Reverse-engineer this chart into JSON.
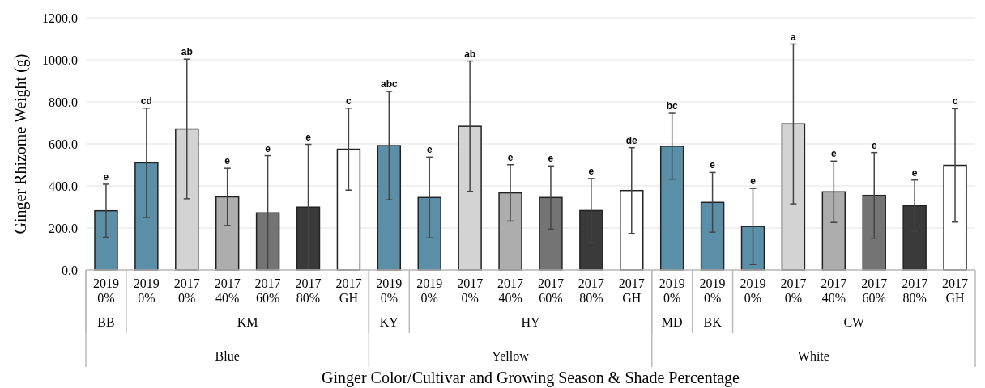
{
  "chart_data": {
    "type": "bar",
    "ylabel": "Ginger Rhizome Weight (g)",
    "xlabel": "Ginger Color/Cultivar and Growing Season & Shade Percentage",
    "categories": [
      "2019 0%",
      "2019 0%",
      "2017 0%",
      "2017 40%",
      "2017 60%",
      "2017 80%",
      "2017 GH",
      "2019 0%",
      "2019 0%",
      "2017 0%",
      "2017 40%",
      "2017 60%",
      "2017 80%",
      "2017 GH",
      "2019 0%",
      "2019 0%",
      "2019 0%",
      "2017 0%",
      "2017 40%",
      "2017 60%",
      "2017 80%",
      "2017 GH"
    ],
    "values": [
      282,
      510,
      671,
      348,
      272,
      299,
      575,
      592,
      345,
      684,
      367,
      345,
      283,
      378,
      589,
      322,
      207,
      695,
      372,
      355,
      306,
      498
    ],
    "errors": [
      126,
      260,
      332,
      136,
      272,
      299,
      195,
      258,
      192,
      310,
      134,
      150,
      152,
      204,
      157,
      142,
      181,
      380,
      146,
      204,
      122,
      270
    ],
    "colors": [
      "#5b8fa8",
      "#5b8fa8",
      "#d3d3d3",
      "#adadad",
      "#747474",
      "#3a3a3a",
      "#ffffff",
      "#5b8fa8",
      "#5b8fa8",
      "#d3d3d3",
      "#adadad",
      "#747474",
      "#3a3a3a",
      "#ffffff",
      "#5b8fa8",
      "#5b8fa8",
      "#5b8fa8",
      "#d3d3d3",
      "#adadad",
      "#747474",
      "#3a3a3a",
      "#ffffff"
    ],
    "annotations": [
      "e",
      "cd",
      "ab",
      "e",
      "e",
      "e",
      "c",
      "abc",
      "e",
      "ab",
      "e",
      "e",
      "e",
      "de",
      "bc",
      "e",
      "e",
      "a",
      "e",
      "e",
      "e",
      "c",
      "BB",
      "KM",
      "KY",
      "HY",
      "MD",
      "BK",
      "CW",
      "Blue",
      "Yellow",
      "White"
    ],
    "ylim": [
      0,
      1200
    ],
    "yticks": [
      {
        "value": 0,
        "label": "0.0"
      },
      {
        "value": 200,
        "label": "200.0"
      },
      {
        "value": 400,
        "label": "400.0"
      },
      {
        "value": 600,
        "label": "600.0"
      },
      {
        "value": 800,
        "label": "800.0"
      },
      {
        "value": 1000,
        "label": "1000.0"
      },
      {
        "value": 1200,
        "label": "1200.0"
      }
    ],
    "grid": "y"
  }
}
